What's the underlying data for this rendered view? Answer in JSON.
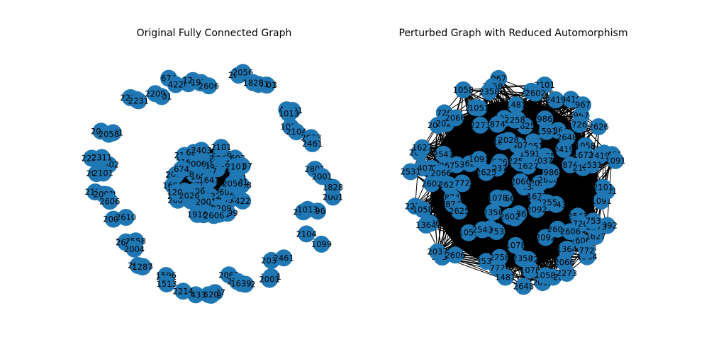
{
  "colors": {
    "background": "#ffffff",
    "node": "#1f77b4",
    "edge": "#000000",
    "label": "#000000"
  },
  "panels": [
    {
      "id": "left",
      "title": "Original Fully Connected Graph",
      "visible_labels": [
        "496",
        "2101",
        "1013",
        "1099",
        "2104",
        "2033",
        "2461",
        "2801",
        "2001",
        "2602",
        "2069",
        "2790",
        "1639",
        "1837",
        "2769",
        "2620",
        "2433",
        "2214",
        "2531",
        "1596",
        "1513",
        "2616",
        "2605",
        "1287",
        "1691",
        "2658",
        "2558",
        "2004",
        "2001",
        "2610",
        "2122",
        "1641",
        "2001",
        "2606",
        "2402",
        "2001",
        "2101",
        "2006",
        "2231",
        "2311",
        "1691",
        "2001",
        "2101",
        "2058",
        "2006",
        "2206",
        "2231",
        "2101",
        "2209",
        "639",
        "674",
        "422",
        "602",
        "1201",
        "1916",
        "2606",
        "2026",
        "2056",
        "2403",
        "2101",
        "2001",
        "1828"
      ]
    },
    {
      "id": "right",
      "title": "Perturbed Graph with Reduced Automorphism",
      "visible_labels": [
        "874",
        "2092",
        "1364",
        "1672",
        "2028",
        "967",
        "1407",
        "2625",
        "726",
        "1051",
        "2419",
        "2358",
        "2258",
        "2066",
        "1078",
        "2037",
        "1058",
        "2543",
        "2273",
        "2626",
        "2602",
        "2531",
        "2606",
        "2066",
        "753",
        "1627",
        "986",
        "772",
        "2255",
        "1091",
        "2101",
        "1591",
        "1481",
        "2648"
      ]
    }
  ]
}
